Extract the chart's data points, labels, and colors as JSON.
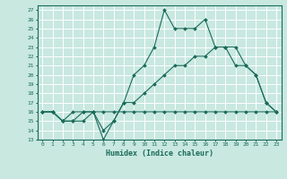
{
  "title": "",
  "xlabel": "Humidex (Indice chaleur)",
  "xlim": [
    -0.5,
    23.5
  ],
  "ylim": [
    13,
    27.5
  ],
  "yticks": [
    13,
    14,
    15,
    16,
    17,
    18,
    19,
    20,
    21,
    22,
    23,
    24,
    25,
    26,
    27
  ],
  "xticks": [
    0,
    1,
    2,
    3,
    4,
    5,
    6,
    7,
    8,
    9,
    10,
    11,
    12,
    13,
    14,
    15,
    16,
    17,
    18,
    19,
    20,
    21,
    22,
    23
  ],
  "bg_color": "#c8e8e0",
  "grid_color": "#ffffff",
  "line_color": "#1a6b5a",
  "line1_x": [
    0,
    1,
    2,
    3,
    4,
    5,
    6,
    7,
    8,
    9,
    10,
    11,
    12,
    13,
    14,
    15,
    16,
    17,
    18,
    19,
    20,
    21,
    22,
    23
  ],
  "line1_y": [
    16,
    16,
    15,
    16,
    16,
    16,
    13,
    15,
    17,
    20,
    21,
    23,
    27,
    25,
    25,
    25,
    26,
    23,
    23,
    23,
    21,
    20,
    17,
    16
  ],
  "line2_x": [
    0,
    1,
    2,
    3,
    4,
    5,
    6,
    7,
    8,
    9,
    10,
    11,
    12,
    13,
    14,
    15,
    16,
    17,
    18,
    19,
    20,
    21,
    22,
    23
  ],
  "line2_y": [
    16,
    16,
    15,
    15,
    16,
    16,
    16,
    16,
    16,
    16,
    16,
    16,
    16,
    16,
    16,
    16,
    16,
    16,
    16,
    16,
    16,
    16,
    16,
    16
  ],
  "line3_x": [
    0,
    1,
    2,
    3,
    4,
    5,
    6,
    7,
    8,
    9,
    10,
    11,
    12,
    13,
    14,
    15,
    16,
    17,
    18,
    19,
    20,
    21,
    22,
    23
  ],
  "line3_y": [
    16,
    16,
    15,
    15,
    15,
    16,
    14,
    15,
    17,
    17,
    18,
    19,
    20,
    21,
    21,
    22,
    22,
    23,
    23,
    21,
    21,
    20,
    17,
    16
  ]
}
